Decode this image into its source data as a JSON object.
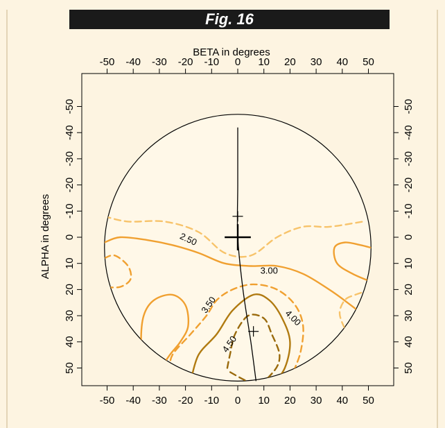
{
  "figure": {
    "label": "Fig. 16"
  },
  "colors": {
    "background": "#fdf4e1",
    "banner": "#1a1a1a",
    "disk_fill": "#fff8e8",
    "contour_light": "#f7c36a",
    "contour_mid": "#f0a030",
    "contour_dark": "#b07a10",
    "contour_darker": "#9a6a0c"
  },
  "chart_data": {
    "type": "contour",
    "title": "Fig. 16",
    "xlabel": "BETA in degrees",
    "ylabel": "ALPHA in degrees",
    "xlim": [
      -58,
      58
    ],
    "ylim": [
      -58,
      58
    ],
    "x_ticks": [
      -50,
      -40,
      -30,
      -20,
      -10,
      0,
      10,
      20,
      30,
      40,
      50
    ],
    "x_tick_labels": [
      "-50",
      "-40",
      "-30",
      "-20",
      "-10",
      "0",
      "10",
      "20",
      "30",
      "40",
      "50"
    ],
    "y_ticks": [
      -50,
      -40,
      -30,
      -20,
      -10,
      0,
      10,
      20,
      30,
      40,
      50
    ],
    "y_tick_labels": [
      "-50",
      "-40",
      "-30",
      "-20",
      "-10",
      "0",
      "10",
      "20",
      "30",
      "40",
      "50"
    ],
    "y_axis_inverted": true,
    "disk": {
      "center": [
        0,
        4
      ],
      "radius": 51
    },
    "vertical_line": [
      [
        0,
        -42
      ],
      [
        0,
        -20
      ],
      [
        0,
        0
      ],
      [
        2,
        20
      ],
      [
        5,
        40
      ],
      [
        7,
        55
      ]
    ],
    "markers": [
      {
        "name": "large-cross",
        "x": 0,
        "y": 0,
        "size": 5
      },
      {
        "name": "small-cross",
        "x": 0,
        "y": -8,
        "size": 2
      },
      {
        "name": "small-cross",
        "x": 6,
        "y": 36,
        "size": 2
      }
    ],
    "contours": [
      {
        "level": "2.50",
        "style": "dashed",
        "weight": "light",
        "points": [
          [
            -51,
            -8
          ],
          [
            -42,
            -6
          ],
          [
            -28,
            -6
          ],
          [
            -15,
            -2
          ],
          [
            -5,
            6
          ],
          [
            5,
            7
          ],
          [
            15,
            0
          ],
          [
            25,
            -4
          ],
          [
            35,
            -4
          ],
          [
            48,
            -6
          ]
        ],
        "label": {
          "text": "2.50",
          "x": -19,
          "y": 1,
          "angle": 25
        }
      },
      {
        "level": "3.00",
        "style": "solid",
        "weight": "mid",
        "points": [
          [
            -51,
            2
          ],
          [
            -45,
            0
          ],
          [
            -35,
            1
          ],
          [
            -25,
            3
          ],
          [
            -15,
            6
          ],
          [
            -5,
            10
          ],
          [
            5,
            11
          ],
          [
            15,
            11
          ],
          [
            25,
            14
          ],
          [
            35,
            20
          ],
          [
            42,
            25
          ],
          [
            51,
            32
          ]
        ],
        "label": {
          "text": "3.00",
          "x": 12,
          "y": 13,
          "angle": 0
        }
      },
      {
        "level": "",
        "style": "dashed",
        "weight": "mid",
        "points": [
          [
            -51,
            8
          ],
          [
            -47,
            7
          ],
          [
            -42,
            11
          ],
          [
            -41,
            16
          ],
          [
            -45,
            19
          ],
          [
            -51,
            19
          ]
        ],
        "label": null
      },
      {
        "level": "",
        "style": "solid",
        "weight": "mid",
        "points": [
          [
            -36,
            47
          ],
          [
            -37,
            40
          ],
          [
            -36,
            30
          ],
          [
            -32,
            24
          ],
          [
            -25,
            22
          ],
          [
            -20,
            26
          ],
          [
            -19,
            34
          ],
          [
            -22,
            40
          ],
          [
            -26,
            45
          ],
          [
            -30,
            51
          ]
        ],
        "label": null
      },
      {
        "level": "3.50",
        "style": "dashed",
        "weight": "mid",
        "points": [
          [
            -26,
            51
          ],
          [
            -25,
            45
          ],
          [
            -18,
            37
          ],
          [
            -12,
            30
          ],
          [
            -8,
            24
          ],
          [
            -2,
            20
          ],
          [
            6,
            18
          ],
          [
            15,
            20
          ],
          [
            22,
            26
          ],
          [
            25,
            34
          ],
          [
            24,
            44
          ],
          [
            21,
            52
          ]
        ],
        "label": {
          "text": "3.50",
          "x": -11,
          "y": 26,
          "angle": -55
        }
      },
      {
        "level": "4.00",
        "style": "solid",
        "weight": "dark",
        "points": [
          [
            -18,
            55
          ],
          [
            -15,
            45
          ],
          [
            -8,
            37
          ],
          [
            -2,
            28
          ],
          [
            6,
            22
          ],
          [
            12,
            24
          ],
          [
            17,
            31
          ],
          [
            20,
            40
          ],
          [
            18,
            50
          ],
          [
            13,
            57
          ]
        ],
        "label": {
          "text": "4.00",
          "x": 21,
          "y": 31,
          "angle": 45
        }
      },
      {
        "level": "4.50",
        "style": "dashed",
        "weight": "darker",
        "points": [
          [
            -4,
            50
          ],
          [
            -3,
            45
          ],
          [
            -1,
            37
          ],
          [
            4,
            30
          ],
          [
            10,
            31
          ],
          [
            13,
            37
          ],
          [
            16,
            45
          ],
          [
            14,
            51
          ],
          [
            7,
            56
          ],
          [
            -4,
            51
          ]
        ],
        "label": {
          "text": "4.50",
          "x": -3,
          "y": 41,
          "angle": -55
        }
      },
      {
        "level": "",
        "style": "solid",
        "weight": "mid",
        "points": [
          [
            51,
            17
          ],
          [
            44,
            14
          ],
          [
            38,
            10
          ],
          [
            37,
            4
          ],
          [
            41,
            2
          ],
          [
            47,
            3
          ],
          [
            51,
            4
          ]
        ],
        "label": null
      },
      {
        "level": "",
        "style": "dashed",
        "weight": "light",
        "points": [
          [
            51,
            20
          ],
          [
            45,
            22
          ],
          [
            41,
            24
          ],
          [
            39,
            29
          ],
          [
            41,
            35
          ],
          [
            44,
            40
          ]
        ],
        "label": null
      }
    ]
  }
}
